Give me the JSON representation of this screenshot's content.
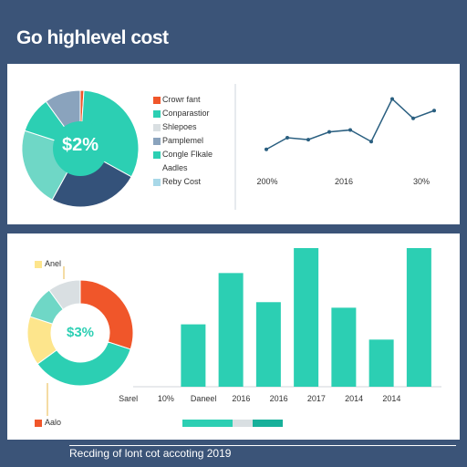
{
  "page": {
    "title": "Go highlevel cost",
    "footer": "Recding of lont cot accoting 2019"
  },
  "colors": {
    "background": "#3b5478",
    "teal": "#2ccfb3",
    "navy": "#34527a",
    "red": "#f0562a",
    "yellow": "#fde58c",
    "light_gray": "#d9dfe2",
    "slate": "#8aa3bd",
    "light_teal": "#6fd7c6"
  },
  "chart_data": [
    {
      "type": "pie",
      "center_label": "$2%",
      "slices": [
        {
          "label": "Crowr fant",
          "value": 1,
          "color": "#f0562a"
        },
        {
          "label": "Conparastior",
          "value": 32,
          "color": "#2ccfb3"
        },
        {
          "label": "Shlepoes",
          "value": 25,
          "color": "#34527a"
        },
        {
          "label": "Pamplemel",
          "value": 22,
          "color": "#6fd7c6"
        },
        {
          "label": "Congle Flkale Aadles",
          "value": 10,
          "color": "#2ccfb3"
        },
        {
          "label": "Reby Cost",
          "value": 10,
          "color": "#8aa3bd"
        }
      ],
      "legend": [
        {
          "label": "Crowr fant",
          "color": "#f0562a"
        },
        {
          "label": "Conparastior",
          "color": "#2ccfb3"
        },
        {
          "label": "Shlepoes",
          "color": "#d9dfe2"
        },
        {
          "label": "Pamplemel",
          "color": "#8aa3bd"
        },
        {
          "label": "Congle Flkale",
          "color": "#2ccfb3"
        },
        {
          "label": "Aadles",
          "color": ""
        },
        {
          "label": "Reby Cost",
          "color": "#a8d8e8"
        }
      ]
    },
    {
      "type": "line",
      "x_tick_labels": [
        "200%",
        "2016",
        "30%"
      ],
      "values": [
        20,
        32,
        30,
        38,
        40,
        28,
        72,
        52,
        60
      ],
      "ylim": [
        0,
        80
      ],
      "color": "#2a5f80"
    },
    {
      "type": "pie",
      "center_label": "$3%",
      "legend": [
        {
          "label": "Anel",
          "color": "#fde58c"
        },
        {
          "label": "Aalo",
          "color": "#f0562a"
        }
      ],
      "slices": [
        {
          "label": "red",
          "value": 30,
          "color": "#f0562a"
        },
        {
          "label": "teal",
          "value": 35,
          "color": "#2ccfb3"
        },
        {
          "label": "yellow",
          "value": 15,
          "color": "#fde58c"
        },
        {
          "label": "light teal",
          "value": 10,
          "color": "#6fd7c6"
        },
        {
          "label": "light gray",
          "value": 10,
          "color": "#d9dfe2"
        }
      ]
    },
    {
      "type": "bar",
      "categories": [
        "Sarel",
        "10%",
        "Daneel",
        "2016",
        "2016",
        "2017",
        "2014",
        "2014"
      ],
      "values": [
        0,
        45,
        82,
        61,
        100,
        57,
        34,
        100
      ],
      "ylim": [
        0,
        100
      ],
      "color": "#2ccfb3",
      "footer_bar": [
        {
          "color": "#2ccfb3",
          "value": 50
        },
        {
          "color": "#d9dfe2",
          "value": 20
        },
        {
          "color": "#17b09a",
          "value": 30
        }
      ]
    }
  ]
}
